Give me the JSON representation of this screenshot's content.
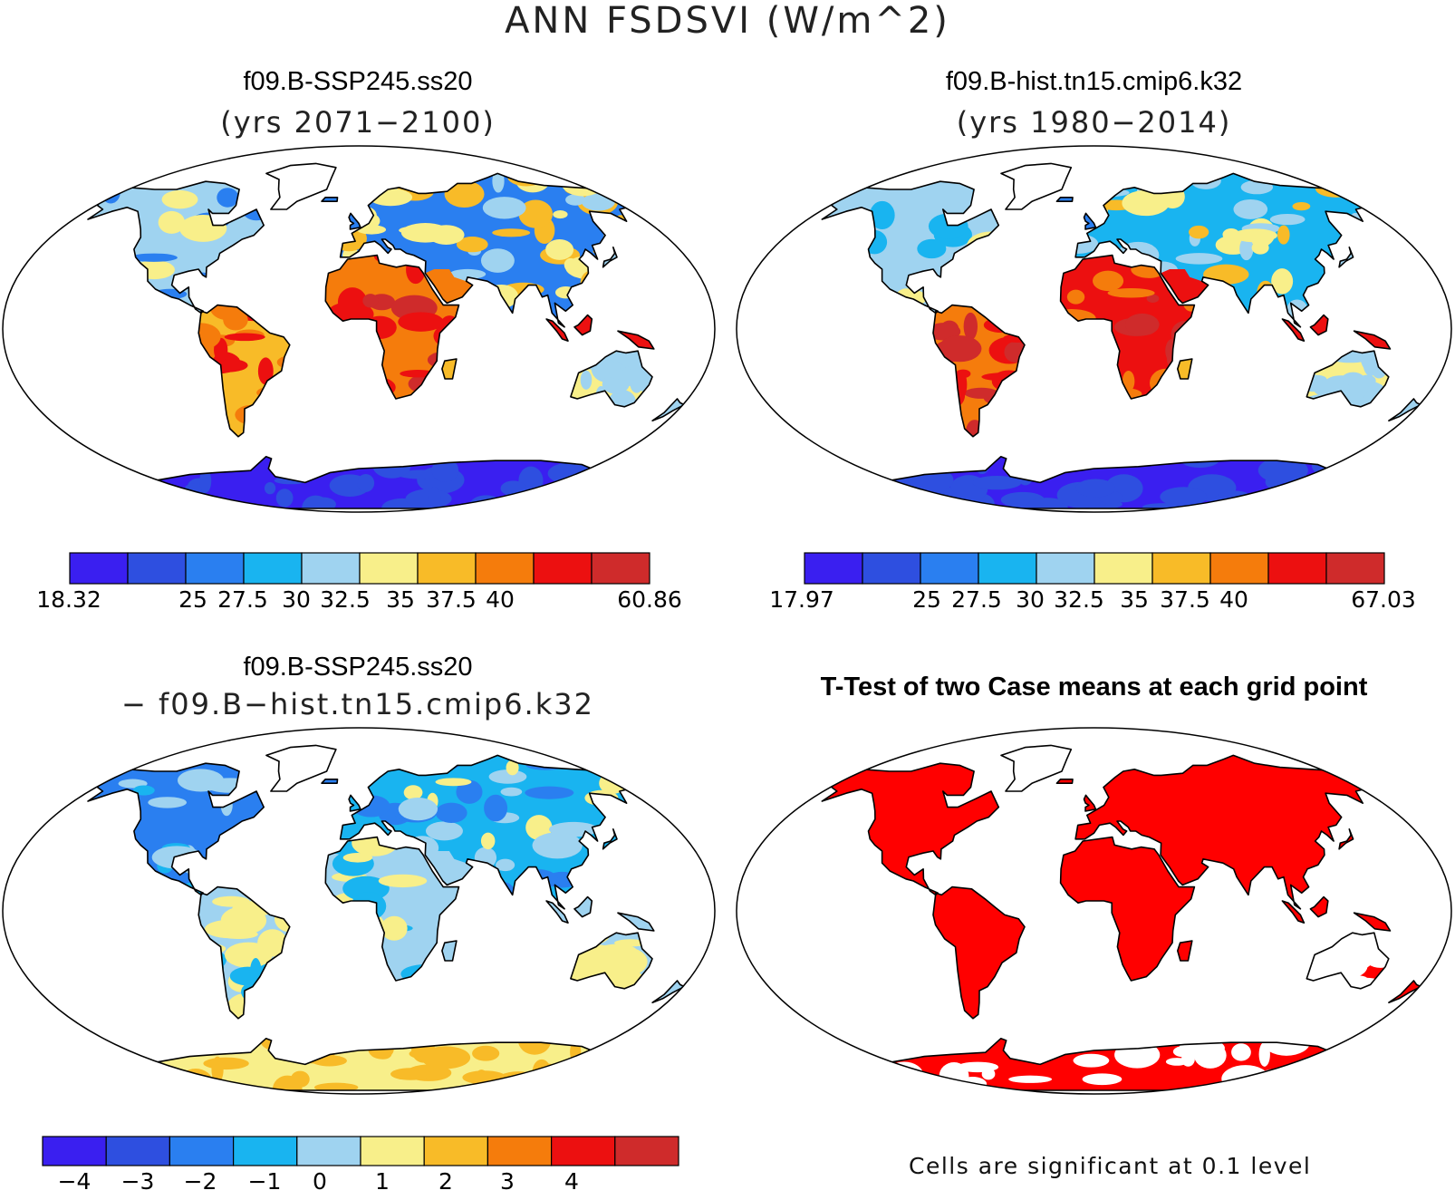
{
  "title": "ANN FSDSVI (W/m^2)",
  "panels": [
    {
      "id": "case1",
      "title": "f09.B-SSP245.ss20",
      "subtitle": "(yrs 2071−2100)"
    },
    {
      "id": "case2",
      "title": "f09.B-hist.tn15.cmip6.k32",
      "subtitle": "(yrs 1980−2014)"
    },
    {
      "id": "diff",
      "title": "f09.B-SSP245.ss20",
      "subtitle": "− f09.B−hist.tn15.cmip6.k32"
    },
    {
      "id": "ttest",
      "title": "T-Test of two Case means at each grid point",
      "note": "Cells are significant at 0.1 level"
    }
  ],
  "chart_data": [
    {
      "type": "heatmap",
      "panel": "case1",
      "title": "f09.B-SSP245.ss20",
      "subtitle": "(yrs 2071−2100)",
      "colorbar": {
        "colors": [
          "#3a1ff0",
          "#2e4fe0",
          "#2a7ff0",
          "#19b4f0",
          "#9fd3f0",
          "#f8ef8a",
          "#f8bb28",
          "#f57c0c",
          "#ec1010",
          "#cf2b2b"
        ],
        "boundaries": [
          25,
          27.5,
          30,
          32.5,
          35,
          37.5,
          40
        ],
        "tick_labels": [
          "18.32",
          "25",
          "27.5",
          "30",
          "32.5",
          "35",
          "37.5",
          "40",
          "60.86"
        ],
        "min": 18.32,
        "max": 60.86
      }
    },
    {
      "type": "heatmap",
      "panel": "case2",
      "title": "f09.B-hist.tn15.cmip6.k32",
      "subtitle": "(yrs 1980−2014)",
      "colorbar": {
        "colors": [
          "#3a1ff0",
          "#2e4fe0",
          "#2a7ff0",
          "#19b4f0",
          "#9fd3f0",
          "#f8ef8a",
          "#f8bb28",
          "#f57c0c",
          "#ec1010",
          "#cf2b2b"
        ],
        "boundaries": [
          25,
          27.5,
          30,
          32.5,
          35,
          37.5,
          40
        ],
        "tick_labels": [
          "17.97",
          "25",
          "27.5",
          "30",
          "32.5",
          "35",
          "37.5",
          "40",
          "67.03"
        ],
        "min": 17.97,
        "max": 67.03
      }
    },
    {
      "type": "heatmap",
      "panel": "diff",
      "title": "f09.B-SSP245.ss20 − f09.B−hist.tn15.cmip6.k32",
      "colorbar": {
        "colors": [
          "#3a1ff0",
          "#2e4fe0",
          "#2a7ff0",
          "#19b4f0",
          "#9fd3f0",
          "#f8ef8a",
          "#f8bb28",
          "#f57c0c",
          "#ec1010",
          "#cf2b2b"
        ],
        "boundaries": [
          -4,
          -3,
          -2,
          -1,
          0,
          1,
          2,
          3,
          4
        ],
        "tick_labels": [
          "−4",
          "−3",
          "−2",
          "−1",
          "0",
          "1",
          "2",
          "3",
          "4"
        ]
      }
    },
    {
      "type": "heatmap",
      "panel": "ttest",
      "title": "T-Test of two Case means at each grid point",
      "significant_color": "#ff0000",
      "note": "Cells are significant at 0.1 level"
    }
  ]
}
